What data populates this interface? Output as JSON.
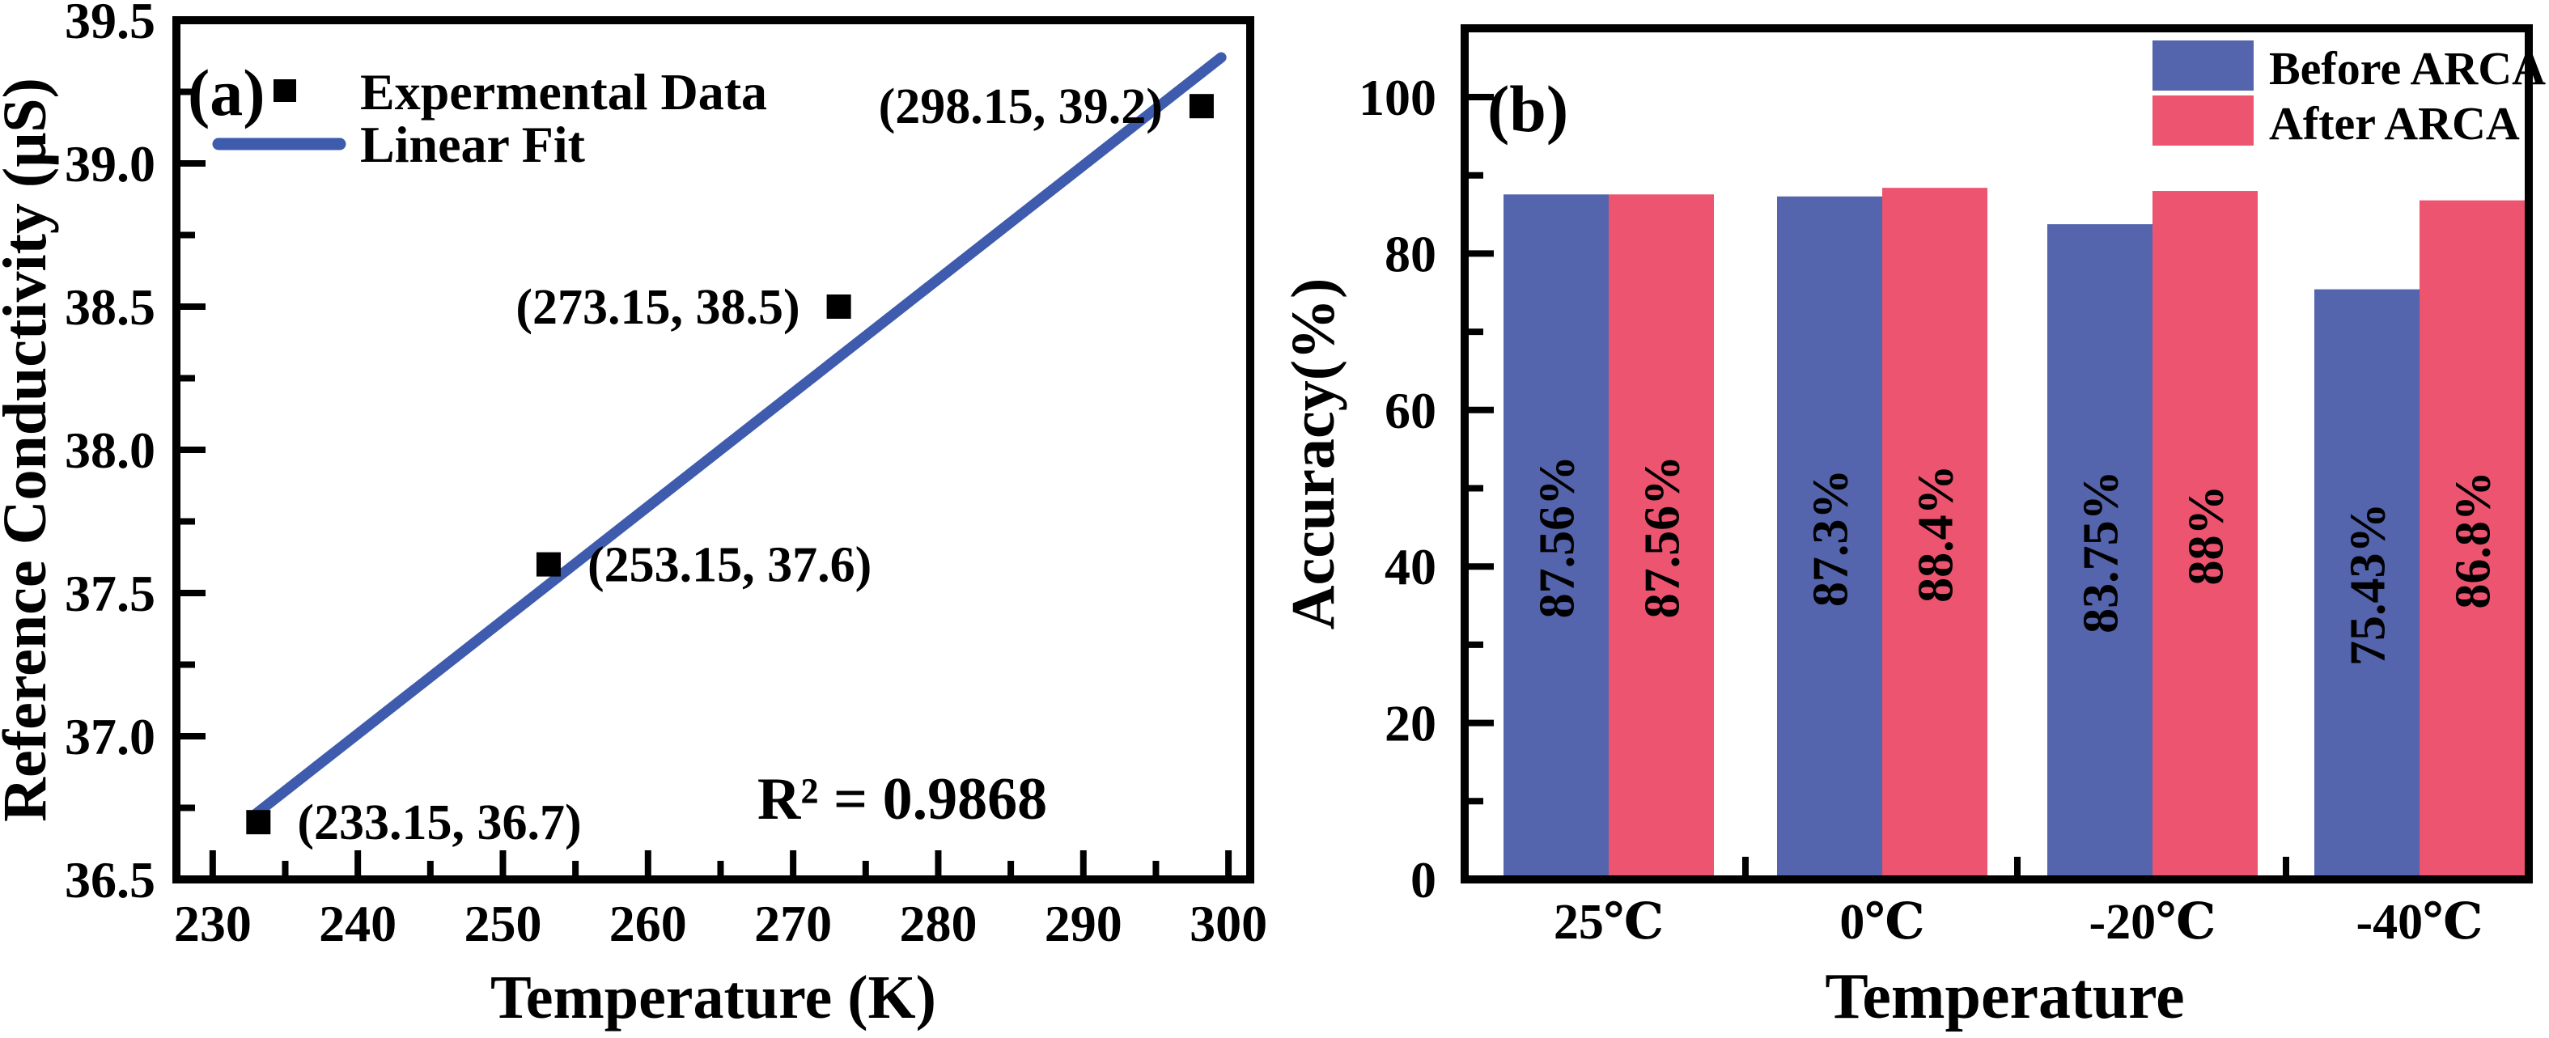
{
  "figure": {
    "background": "#ffffff",
    "panel_a_label": "(a)",
    "panel_b_label": "(b)"
  },
  "chart_data": [
    {
      "id": "panel-a",
      "type": "scatter",
      "panel_label": "(a)",
      "xlabel": "Temperature (K)",
      "ylabel": "Reference Conductivity (μS)",
      "xlim": [
        227.5,
        301.5
      ],
      "ylim": [
        36.5,
        39.5
      ],
      "x_ticks": [
        "230",
        "240",
        "250",
        "260",
        "270",
        "280",
        "290",
        "300"
      ],
      "y_ticks": [
        "36.5",
        "37.0",
        "37.5",
        "38.0",
        "38.5",
        "39.0",
        "39.5"
      ],
      "grid": false,
      "legend_position": "top-left",
      "legend": [
        {
          "marker": "square",
          "label": "Expermental Data"
        },
        {
          "marker": "line",
          "label": "Linear Fit"
        }
      ],
      "points": [
        {
          "x": 233.15,
          "y": 36.7,
          "label": "(233.15, 36.7)",
          "label_side": "right"
        },
        {
          "x": 253.15,
          "y": 37.6,
          "label": "(253.15, 37.6)",
          "label_side": "right"
        },
        {
          "x": 273.15,
          "y": 38.5,
          "label": "(273.15, 38.5)",
          "label_side": "left"
        },
        {
          "x": 298.15,
          "y": 39.2,
          "label": "(298.15, 39.2)",
          "label_side": "left"
        }
      ],
      "fit_line": {
        "x1": 233.0,
        "y1": 36.73,
        "x2": 299.5,
        "y2": 39.37
      },
      "annotation": "R² = 0.9868",
      "colors": {
        "marker": "#000000",
        "line": "#3e5bad",
        "annotation": "#3a55a9"
      }
    },
    {
      "id": "panel-b",
      "type": "bar",
      "panel_label": "(b)",
      "xlabel": "Temperature",
      "ylabel": "Accuracy(%)",
      "ylim": [
        0,
        108
      ],
      "y_ticks": [
        "0",
        "20",
        "40",
        "60",
        "80",
        "100"
      ],
      "grid": false,
      "legend_position": "top-right",
      "categories": [
        "25℃",
        "0℃",
        "-20℃",
        "-40℃"
      ],
      "series": [
        {
          "name": "Before ARCA",
          "color": "#5464ad",
          "values": [
            87.56,
            87.3,
            83.75,
            75.43
          ],
          "labels": [
            "87.56%",
            "87.3%",
            "83.75%",
            "75.43%"
          ]
        },
        {
          "name": "After ARCA",
          "color": "#ec5470",
          "values": [
            87.56,
            88.4,
            88,
            86.8
          ],
          "labels": [
            "87.56%",
            "88.4%",
            "88%",
            "86.8%"
          ]
        }
      ],
      "bar_label_color": "#ffffff"
    }
  ]
}
